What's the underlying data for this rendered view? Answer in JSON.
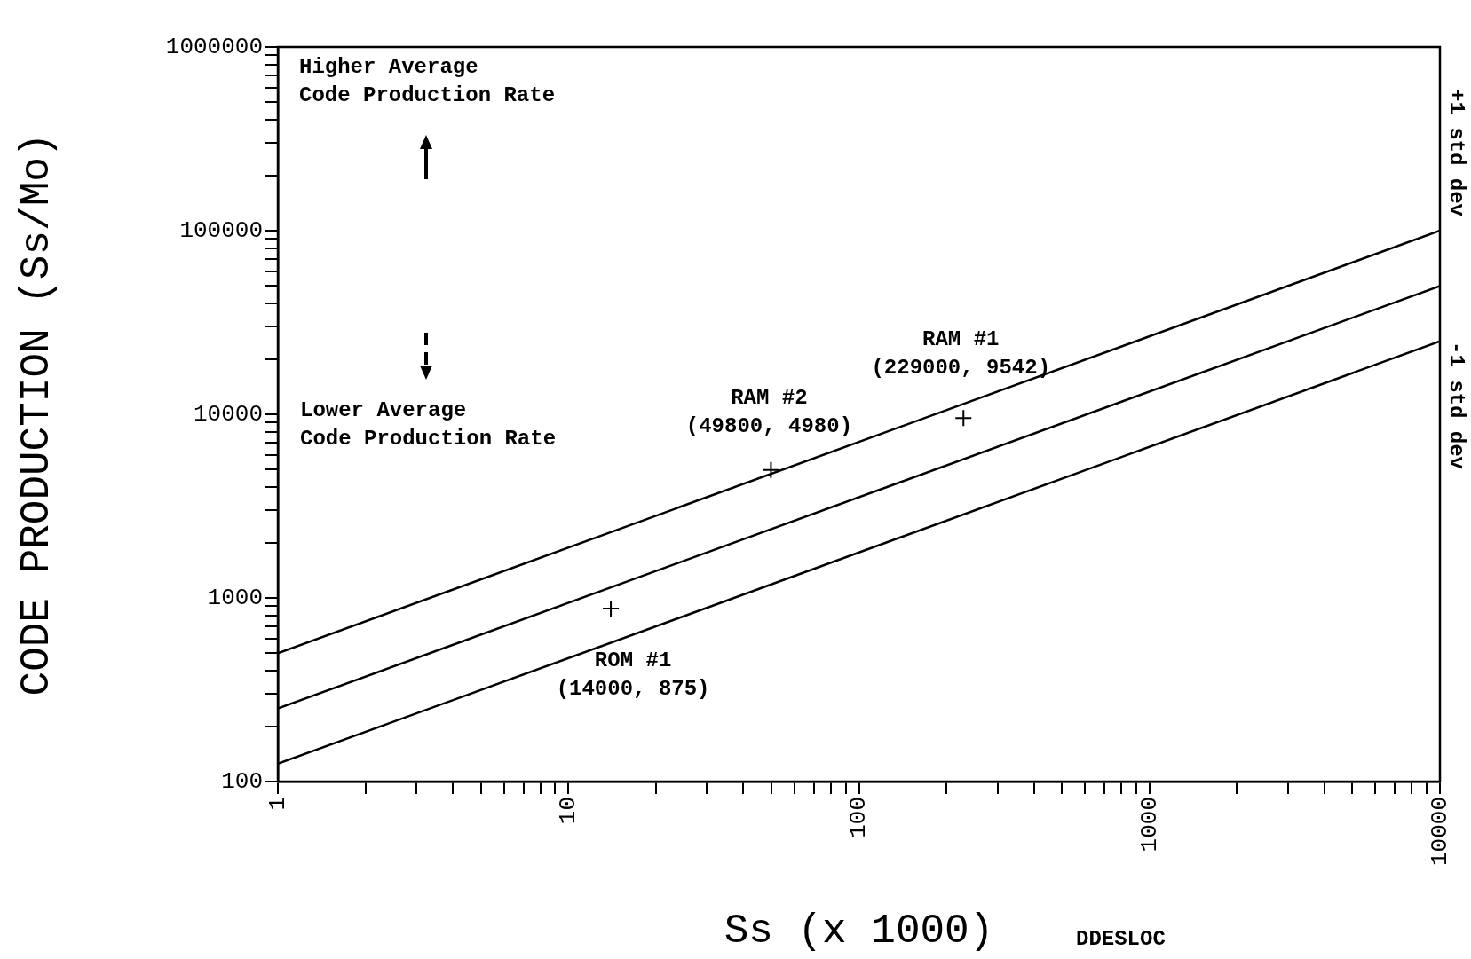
{
  "chart_data": {
    "type": "line",
    "xlabel": "Ss (x 1000)",
    "ylabel": "CODE PRODUCTION (Ss/Mo)",
    "log": "xy",
    "grid": false,
    "legend": false,
    "xlim": [
      1,
      10000
    ],
    "ylim": [
      100,
      1000000
    ],
    "xticks": [
      1,
      {
        "value": 2,
        "label": null
      },
      {
        "value": 3,
        "label": null
      },
      {
        "value": 4,
        "label": null
      },
      {
        "value": 5,
        "label": null
      },
      {
        "value": 6,
        "label": null
      },
      {
        "value": 7,
        "label": null
      },
      {
        "value": 8,
        "label": null
      },
      {
        "value": 9,
        "label": null
      },
      10,
      {
        "value": 20,
        "label": null
      },
      {
        "value": 30,
        "label": null
      },
      {
        "value": 40,
        "label": null
      },
      {
        "value": 50,
        "label": null
      },
      {
        "value": 60,
        "label": null
      },
      {
        "value": 70,
        "label": null
      },
      {
        "value": 80,
        "label": null
      },
      {
        "value": 90,
        "label": null
      },
      100,
      {
        "value": 200,
        "label": null
      },
      {
        "value": 300,
        "label": null
      },
      {
        "value": 400,
        "label": null
      },
      {
        "value": 500,
        "label": null
      },
      {
        "value": 600,
        "label": null
      },
      {
        "value": 700,
        "label": null
      },
      {
        "value": 800,
        "label": null
      },
      {
        "value": 900,
        "label": null
      },
      1000,
      {
        "value": 2000,
        "label": null
      },
      {
        "value": 3000,
        "label": null
      },
      {
        "value": 4000,
        "label": null
      },
      {
        "value": 5000,
        "label": null
      },
      {
        "value": 6000,
        "label": null
      },
      {
        "value": 7000,
        "label": null
      },
      {
        "value": 8000,
        "label": null
      },
      {
        "value": 9000,
        "label": null
      },
      10000
    ],
    "yticks": [
      100,
      {
        "value": 200,
        "label": null
      },
      {
        "value": 300,
        "label": null
      },
      {
        "value": 400,
        "label": null
      },
      {
        "value": 500,
        "label": null
      },
      {
        "value": 600,
        "label": null
      },
      {
        "value": 700,
        "label": null
      },
      {
        "value": 800,
        "label": null
      },
      {
        "value": 900,
        "label": null
      },
      1000,
      {
        "value": 2000,
        "label": null
      },
      {
        "value": 3000,
        "label": null
      },
      {
        "value": 4000,
        "label": null
      },
      {
        "value": 5000,
        "label": null
      },
      {
        "value": 6000,
        "label": null
      },
      {
        "value": 7000,
        "label": null
      },
      {
        "value": 8000,
        "label": null
      },
      {
        "value": 9000,
        "label": null
      },
      10000,
      {
        "value": 20000,
        "label": null
      },
      {
        "value": 30000,
        "label": null
      },
      {
        "value": 40000,
        "label": null
      },
      {
        "value": 50000,
        "label": null
      },
      {
        "value": 60000,
        "label": null
      },
      {
        "value": 70000,
        "label": null
      },
      {
        "value": 80000,
        "label": null
      },
      {
        "value": 90000,
        "label": null
      },
      100000,
      {
        "value": 200000,
        "label": null
      },
      {
        "value": 300000,
        "label": null
      },
      {
        "value": 400000,
        "label": null
      },
      {
        "value": 500000,
        "label": null
      },
      {
        "value": 600000,
        "label": null
      },
      {
        "value": 700000,
        "label": null
      },
      {
        "value": 800000,
        "label": null
      },
      {
        "value": 900000,
        "label": null
      },
      1000000
    ],
    "series": [
      {
        "type": "line",
        "color": "#000000",
        "x": [
          1,
          10000
        ],
        "values": [
          500,
          100000
        ],
        "marker": "none"
      },
      {
        "type": "line",
        "color": "#000000",
        "x": [
          1,
          10000
        ],
        "values": [
          250,
          50000
        ],
        "marker": "none"
      },
      {
        "type": "line",
        "color": "#000000",
        "x": [
          1,
          10000
        ],
        "values": [
          125,
          25000
        ],
        "marker": "none"
      },
      {
        "type": "scatter",
        "color": "#000000",
        "x": [
          14,
          49.8,
          229
        ],
        "values": [
          875,
          4980,
          9542
        ],
        "marker": "cross"
      }
    ],
    "annotations": [
      "Higher Average\nCode Production Rate",
      "Lower Average\nCode Production Rate",
      {
        "text": "ROM #1\n(14000, 875)",
        "x": 14,
        "y": 875
      },
      {
        "text": "RAM #2\n(49800, 4980)",
        "x": 49.8,
        "y": 4980
      },
      {
        "text": "RAM #1\n(229000, 9542)",
        "x": 229,
        "y": 9542
      },
      "+1 std dev",
      "-1 std dev",
      "DDESLOC"
    ]
  }
}
